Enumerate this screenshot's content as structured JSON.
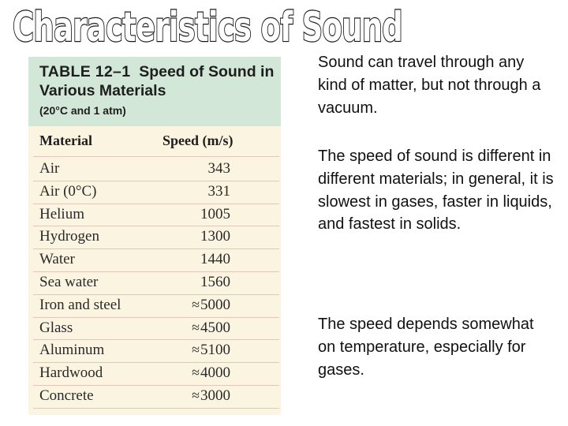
{
  "slide": {
    "title": "Characteristics of Sound"
  },
  "table": {
    "title_number": "TABLE 12–1",
    "title_text": "Speed of Sound in Various Materials",
    "subtitle": "(20°C and 1 atm)",
    "columns": [
      "Material",
      "Speed (m/s)"
    ],
    "rows": [
      {
        "material": "Air",
        "approx": "",
        "speed": "343"
      },
      {
        "material": "Air (0°C)",
        "approx": "",
        "speed": "331"
      },
      {
        "material": "Helium",
        "approx": "",
        "speed": "1005"
      },
      {
        "material": "Hydrogen",
        "approx": "",
        "speed": "1300"
      },
      {
        "material": "Water",
        "approx": "",
        "speed": "1440"
      },
      {
        "material": "Sea water",
        "approx": "",
        "speed": "1560"
      },
      {
        "material": "Iron and steel",
        "approx": "≈",
        "speed": "5000"
      },
      {
        "material": "Glass",
        "approx": "≈",
        "speed": "4500"
      },
      {
        "material": "Aluminum",
        "approx": "≈",
        "speed": "5100"
      },
      {
        "material": "Hardwood",
        "approx": "≈",
        "speed": "4000"
      },
      {
        "material": "Concrete",
        "approx": "≈",
        "speed": "3000"
      }
    ]
  },
  "paragraphs": [
    "Sound can travel through any kind of matter, but not through a vacuum.",
    "The speed of sound is different in different materials; in general, it is slowest in gases, faster in liquids, and fastest in solids.",
    "The speed depends somewhat on temperature, especially for gases."
  ],
  "colors": {
    "table_background": "#fbf4e1",
    "table_header": "#d3e7d8",
    "row_rule": "#e1c7bb"
  }
}
